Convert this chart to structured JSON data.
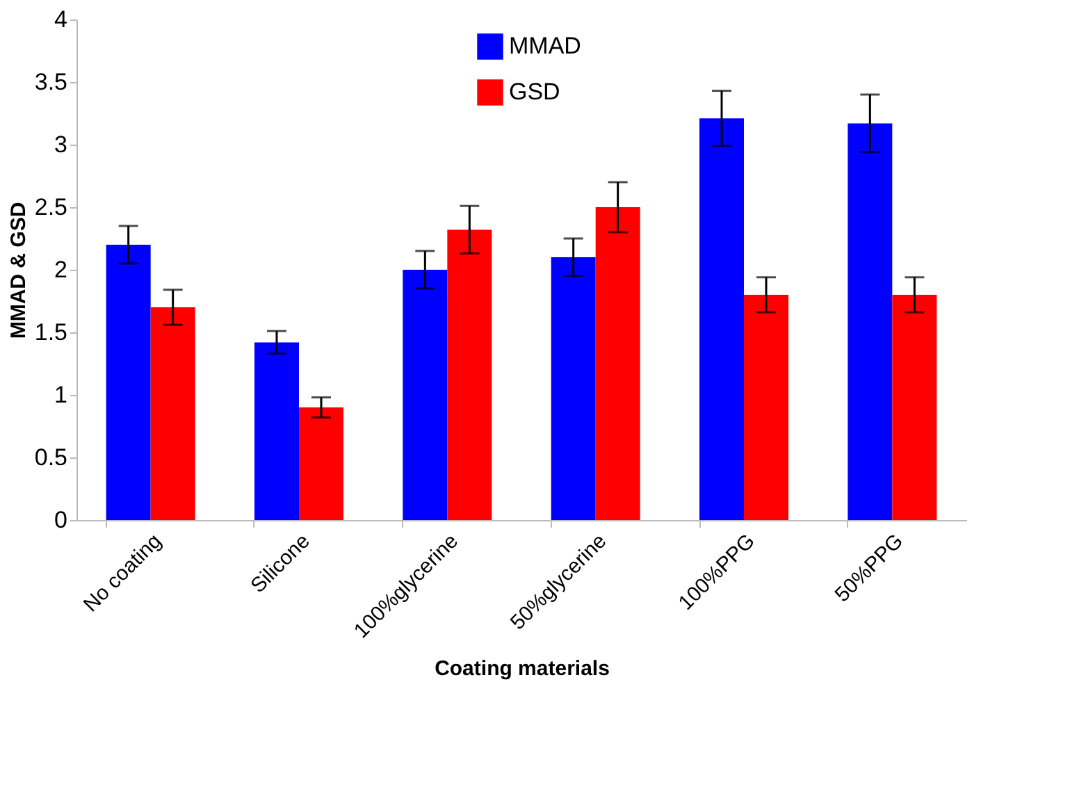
{
  "chart_data": {
    "type": "bar",
    "xlabel": "Coating materials",
    "ylabel": "MMAD & GSD",
    "categories": [
      "No coating",
      "Silicone",
      "100%glycerine",
      "50%glycerine",
      "100%PPG",
      "50%PPG"
    ],
    "series": [
      {
        "name": "MMAD",
        "color": "#0000ff",
        "values": [
          2.2,
          1.42,
          2.0,
          2.1,
          3.21,
          3.17
        ],
        "errors": [
          0.15,
          0.09,
          0.15,
          0.15,
          0.22,
          0.23
        ]
      },
      {
        "name": "GSD",
        "color": "#ff0000",
        "values": [
          1.7,
          0.9,
          2.32,
          2.5,
          1.8,
          1.8
        ],
        "errors": [
          0.14,
          0.08,
          0.19,
          0.2,
          0.14,
          0.14
        ]
      }
    ],
    "ylim": [
      0,
      4
    ],
    "yticks": [
      0,
      0.5,
      1,
      1.5,
      2,
      2.5,
      3,
      3.5,
      4
    ],
    "grid": false,
    "legend": "top"
  }
}
